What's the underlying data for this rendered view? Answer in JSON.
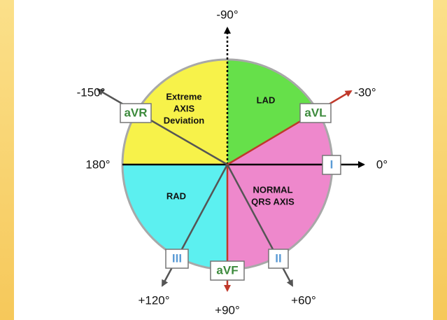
{
  "angle_labels": [
    "-90°",
    "-150°",
    "-30°",
    "180°",
    "0°",
    "+120°",
    "+90°",
    "+60°"
  ],
  "leads": [
    "aVR",
    "aVL",
    "I",
    "III",
    "aVF",
    "II"
  ],
  "regions": [
    {
      "lines": [
        "Extreme",
        "AXIS",
        "Deviation"
      ]
    },
    {
      "lines": [
        "LAD"
      ]
    },
    {
      "lines": [
        "NORMAL",
        "QRS AXIS"
      ]
    },
    {
      "lines": [
        "RAD"
      ]
    }
  ]
}
